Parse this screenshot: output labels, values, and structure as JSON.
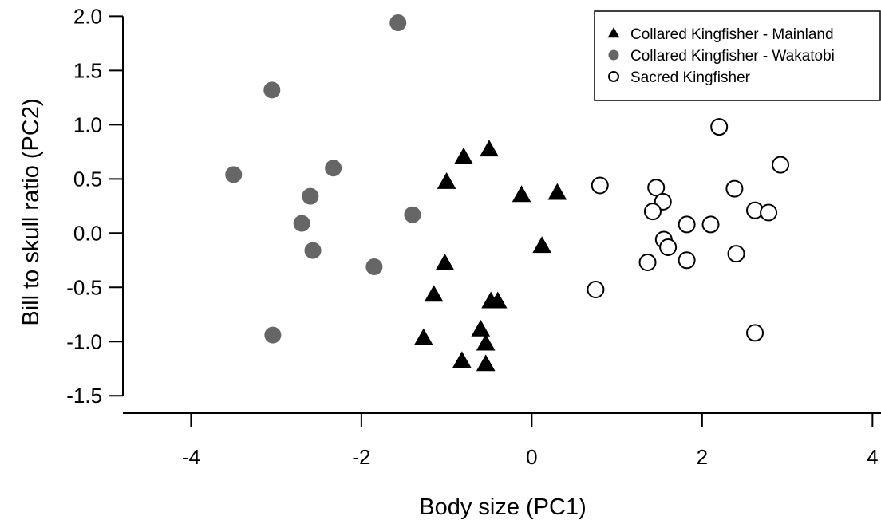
{
  "chart_data": {
    "type": "scatter",
    "title": "",
    "xlabel": "Body size (PC1)",
    "ylabel": "Bill to skull ratio (PC2)",
    "xlim": [
      -4.8,
      4.1
    ],
    "ylim": [
      -1.66,
      2.15
    ],
    "xticks": [
      -4,
      -2,
      0,
      2,
      4
    ],
    "xtick_labels": [
      "-4",
      "-2",
      "0",
      "2",
      "4"
    ],
    "yticks": [
      -1.5,
      -1.0,
      -0.5,
      0.0,
      0.5,
      1.0,
      1.5,
      2.0
    ],
    "ytick_labels": [
      "-1.5",
      "-1.0",
      "-0.5",
      "0.0",
      "0.5",
      "1.0",
      "1.5",
      "2.0"
    ],
    "grid": false,
    "legend_position": "top-right",
    "series": [
      {
        "name": "Collared Kingfisher - Mainland",
        "marker": "triangle",
        "color": "#000000",
        "fill": "#000000",
        "points": [
          [
            -0.8,
            0.7
          ],
          [
            -0.5,
            0.77
          ],
          [
            -1.0,
            0.47
          ],
          [
            -0.12,
            0.35
          ],
          [
            0.3,
            0.37
          ],
          [
            0.12,
            -0.12
          ],
          [
            -1.02,
            -0.28
          ],
          [
            -1.15,
            -0.57
          ],
          [
            -0.48,
            -0.63
          ],
          [
            -0.4,
            -0.63
          ],
          [
            -0.6,
            -0.89
          ],
          [
            -1.27,
            -0.97
          ],
          [
            -0.54,
            -1.02
          ],
          [
            -0.82,
            -1.18
          ],
          [
            -0.54,
            -1.21
          ]
        ]
      },
      {
        "name": "Collared Kingfisher - Wakatobi",
        "marker": "circle",
        "color": "#666666",
        "fill": "#666666",
        "points": [
          [
            -1.57,
            1.94
          ],
          [
            -3.05,
            1.32
          ],
          [
            -3.5,
            0.54
          ],
          [
            -2.33,
            0.6
          ],
          [
            -2.6,
            0.34
          ],
          [
            -1.4,
            0.17
          ],
          [
            -2.7,
            0.09
          ],
          [
            -2.57,
            -0.16
          ],
          [
            -1.85,
            -0.31
          ],
          [
            -3.04,
            -0.94
          ]
        ]
      },
      {
        "name": "Sacred Kingfisher",
        "marker": "circle-open",
        "color": "#000000",
        "fill": "#ffffff",
        "points": [
          [
            2.2,
            0.98
          ],
          [
            2.92,
            0.63
          ],
          [
            0.8,
            0.44
          ],
          [
            1.46,
            0.42
          ],
          [
            2.38,
            0.41
          ],
          [
            1.54,
            0.29
          ],
          [
            1.42,
            0.2
          ],
          [
            2.62,
            0.21
          ],
          [
            2.78,
            0.19
          ],
          [
            1.82,
            0.08
          ],
          [
            2.1,
            0.08
          ],
          [
            1.55,
            -0.06
          ],
          [
            1.6,
            -0.13
          ],
          [
            2.4,
            -0.19
          ],
          [
            1.36,
            -0.27
          ],
          [
            1.82,
            -0.25
          ],
          [
            0.75,
            -0.52
          ],
          [
            2.62,
            -0.92
          ]
        ]
      }
    ]
  }
}
